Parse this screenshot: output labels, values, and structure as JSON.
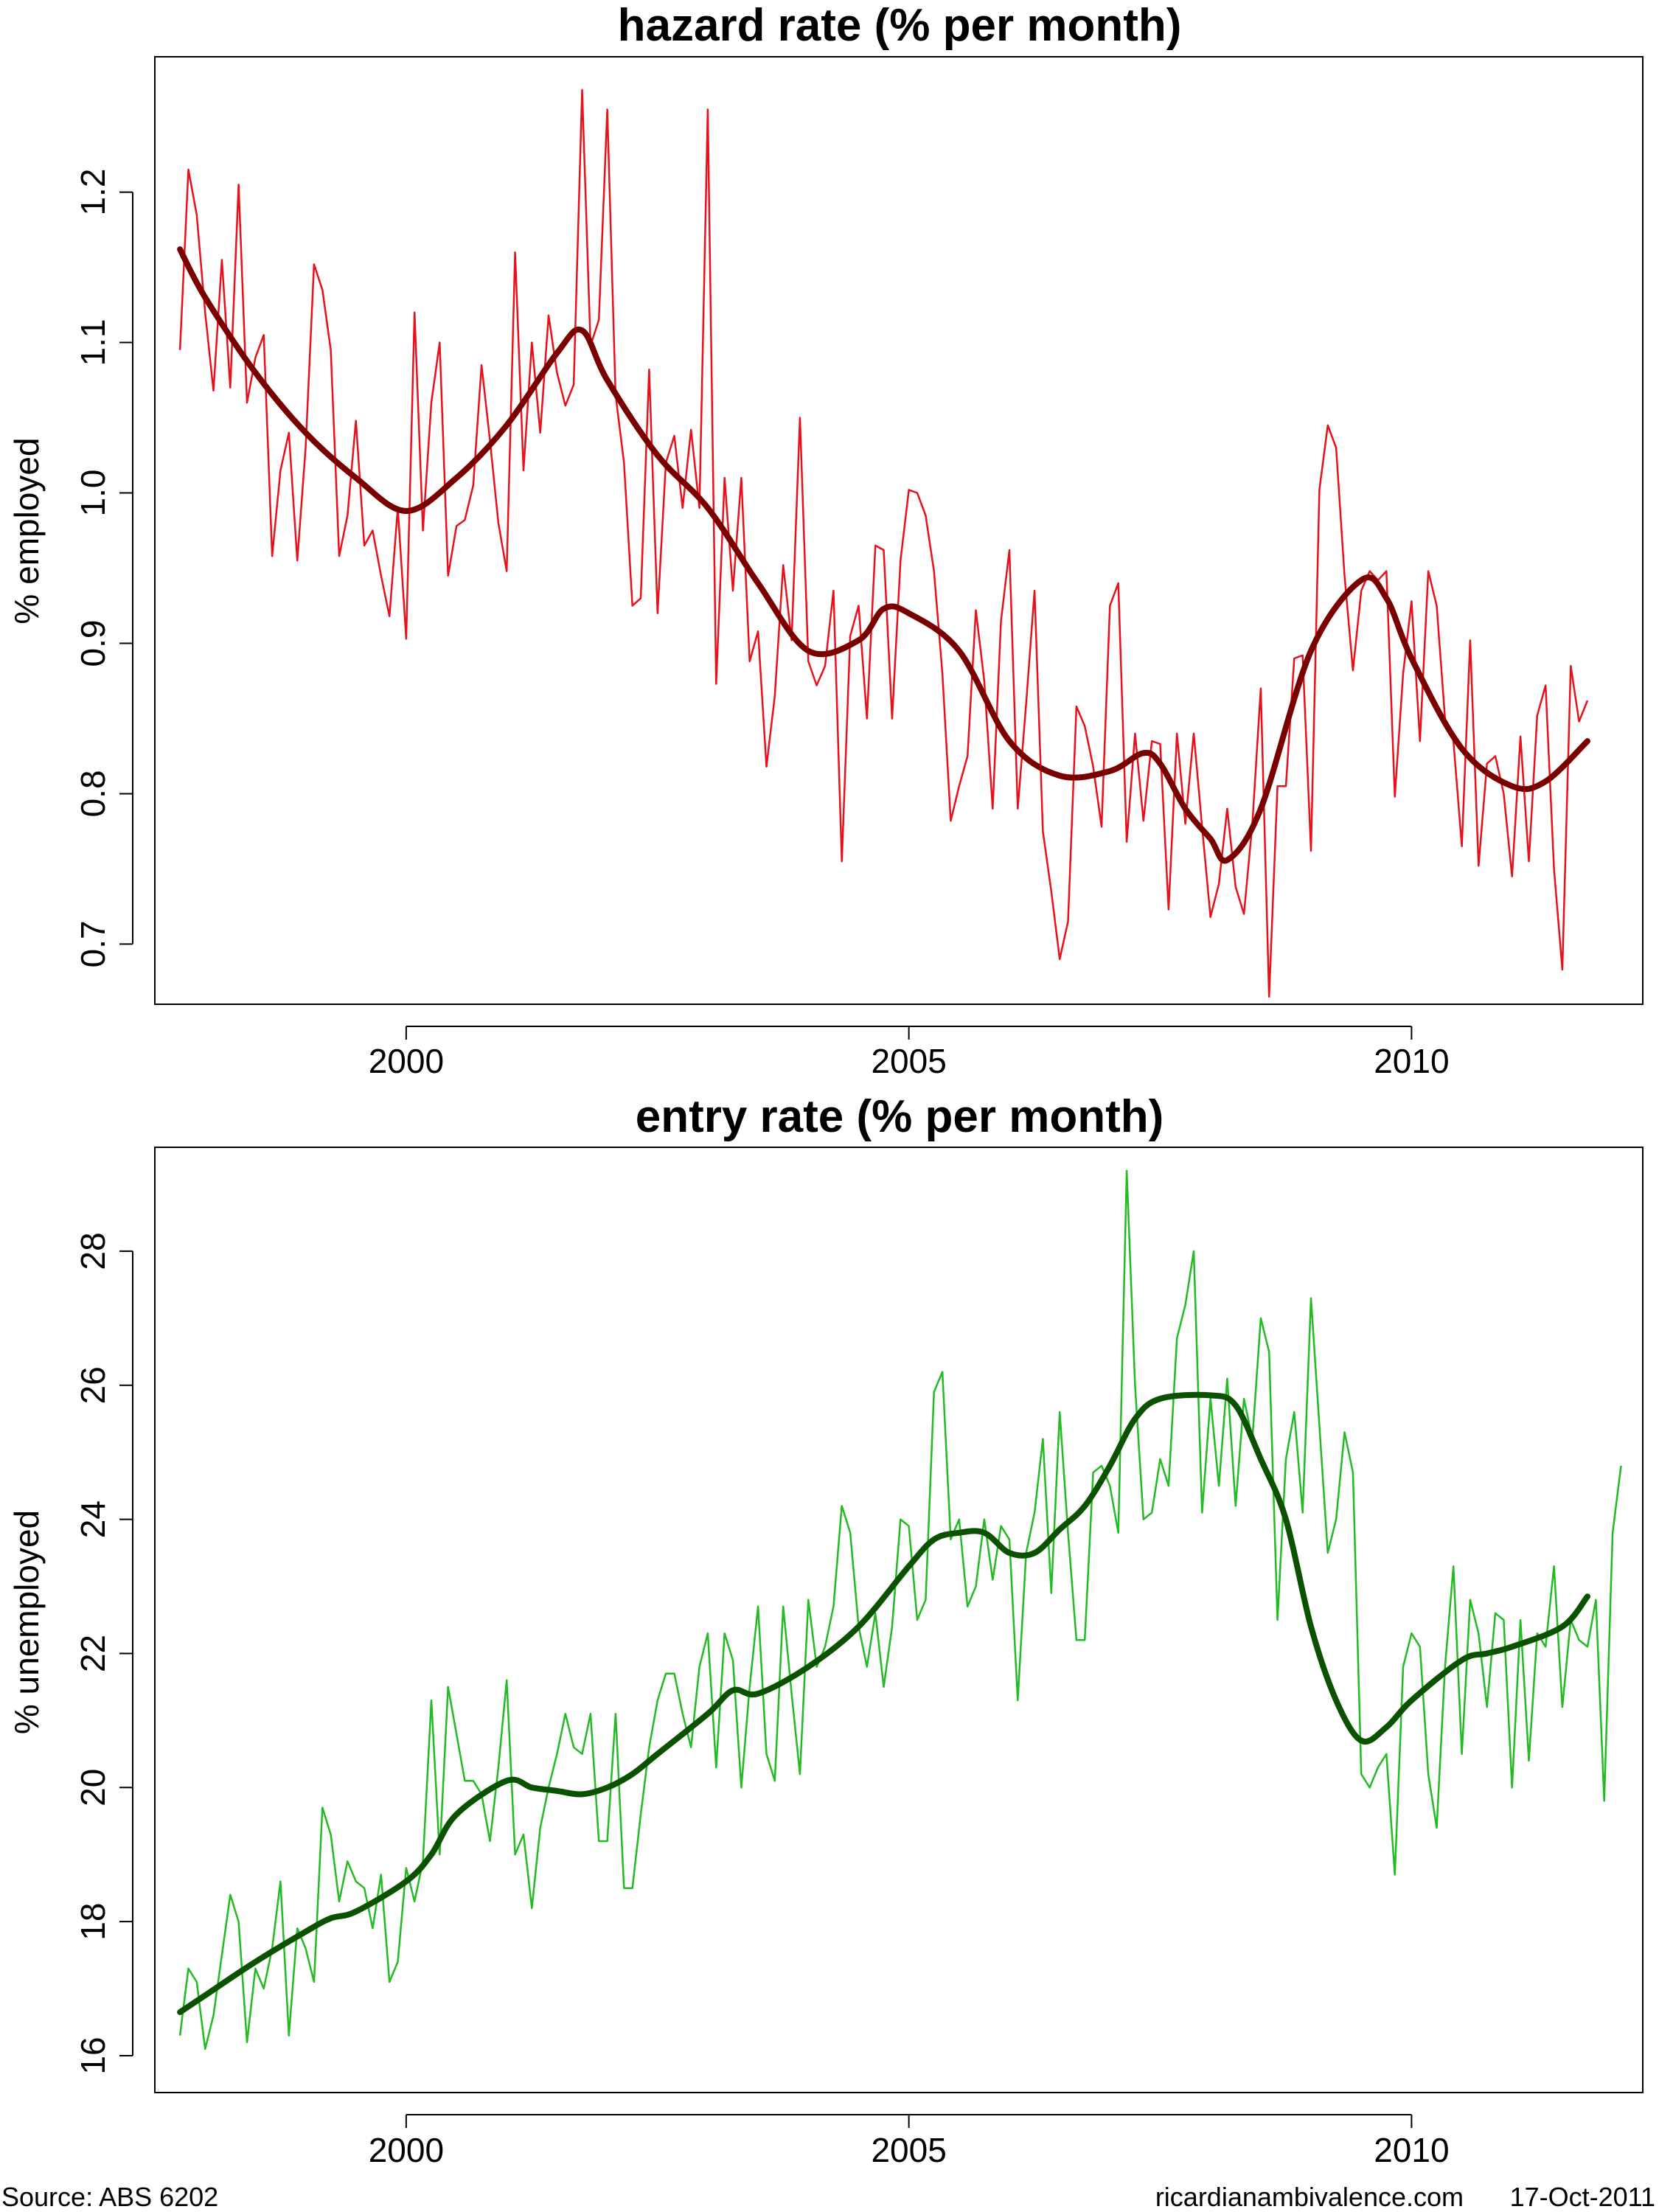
{
  "footer": {
    "source": "Source: ABS 6202",
    "site": "ricardianambivalence.com",
    "date": "17-Oct-2011"
  },
  "chart_data": [
    {
      "type": "line",
      "title": "hazard rate (% per month)",
      "xlabel": "",
      "ylabel": "% employed",
      "xlim": [
        1997.5,
        2012.3
      ],
      "ylim": [
        0.66,
        1.29
      ],
      "x_ticks": [
        2000,
        2005,
        2010
      ],
      "y_ticks": [
        0.7,
        0.8,
        0.9,
        1.0,
        1.1,
        1.2
      ],
      "y_tick_labels": [
        "0.7",
        "0.8",
        "0.9",
        "1.0",
        "1.1",
        "1.2"
      ],
      "colors": {
        "raw": "#e8101a",
        "smooth": "#7a0000"
      },
      "x_start": 1997.75,
      "x_step": 0.0833333,
      "raw": [
        1.095,
        1.215,
        1.185,
        1.12,
        1.068,
        1.155,
        1.07,
        1.205,
        1.06,
        1.09,
        1.105,
        0.958,
        1.015,
        1.04,
        0.955,
        1.03,
        1.152,
        1.135,
        1.095,
        0.958,
        0.985,
        1.048,
        0.965,
        0.975,
        0.945,
        0.918,
        0.99,
        0.903,
        1.12,
        0.975,
        1.06,
        1.1,
        0.945,
        0.978,
        0.982,
        1.005,
        1.085,
        1.035,
        0.98,
        0.948,
        1.16,
        1.015,
        1.1,
        1.04,
        1.118,
        1.08,
        1.058,
        1.072,
        1.268,
        1.098,
        1.115,
        1.255,
        1.065,
        1.02,
        0.925,
        0.93,
        1.082,
        0.92,
        1.02,
        1.038,
        0.99,
        1.042,
        0.99,
        1.255,
        0.873,
        1.01,
        0.935,
        1.01,
        0.888,
        0.908,
        0.818,
        0.865,
        0.952,
        0.902,
        1.05,
        0.888,
        0.872,
        0.885,
        0.935,
        0.755,
        0.905,
        0.925,
        0.85,
        0.965,
        0.962,
        0.85,
        0.955,
        1.002,
        1.0,
        0.985,
        0.948,
        0.88,
        0.782,
        0.805,
        0.825,
        0.922,
        0.875,
        0.79,
        0.915,
        0.962,
        0.79,
        0.86,
        0.935,
        0.775,
        0.735,
        0.69,
        0.715,
        0.858,
        0.845,
        0.818,
        0.778,
        0.925,
        0.94,
        0.768,
        0.84,
        0.782,
        0.835,
        0.833,
        0.723,
        0.84,
        0.78,
        0.84,
        0.778,
        0.718,
        0.74,
        0.79,
        0.738,
        0.72,
        0.78,
        0.87,
        0.665,
        0.805,
        0.805,
        0.89,
        0.892,
        0.762,
        1.002,
        1.045,
        1.03,
        0.945,
        0.882,
        0.935,
        0.948,
        0.942,
        0.948,
        0.798,
        0.88,
        0.928,
        0.835,
        0.948,
        0.925,
        0.85,
        0.835,
        0.765,
        0.902,
        0.752,
        0.82,
        0.825,
        0.8,
        0.745,
        0.838,
        0.755,
        0.852,
        0.872,
        0.75,
        0.683,
        0.885,
        0.848,
        0.862
      ],
      "smooth": [
        [
          1997.75,
          1.162
        ],
        [
          1998.0,
          1.13
        ],
        [
          1998.5,
          1.08
        ],
        [
          1999.0,
          1.04
        ],
        [
          1999.5,
          1.01
        ],
        [
          2000.0,
          0.988
        ],
        [
          2000.5,
          1.01
        ],
        [
          2001.0,
          1.045
        ],
        [
          2001.5,
          1.093
        ],
        [
          2001.75,
          1.108
        ],
        [
          2002.0,
          1.075
        ],
        [
          2002.5,
          1.025
        ],
        [
          2003.0,
          0.99
        ],
        [
          2003.5,
          0.94
        ],
        [
          2004.0,
          0.895
        ],
        [
          2004.5,
          0.902
        ],
        [
          2004.75,
          0.923
        ],
        [
          2005.0,
          0.92
        ],
        [
          2005.5,
          0.895
        ],
        [
          2006.0,
          0.835
        ],
        [
          2006.5,
          0.812
        ],
        [
          2007.0,
          0.815
        ],
        [
          2007.33,
          0.827
        ],
        [
          2007.5,
          0.82
        ],
        [
          2007.75,
          0.79
        ],
        [
          2008.0,
          0.77
        ],
        [
          2008.17,
          0.756
        ],
        [
          2008.5,
          0.79
        ],
        [
          2009.0,
          0.895
        ],
        [
          2009.5,
          0.942
        ],
        [
          2009.75,
          0.93
        ],
        [
          2010.0,
          0.89
        ],
        [
          2010.5,
          0.83
        ],
        [
          2011.0,
          0.805
        ],
        [
          2011.33,
          0.808
        ],
        [
          2011.75,
          0.835
        ]
      ]
    },
    {
      "type": "line",
      "title": "entry rate (% per month)",
      "xlabel": "",
      "ylabel": "% unemployed",
      "xlim": [
        1997.5,
        2012.3
      ],
      "ylim": [
        15.45,
        29.55
      ],
      "x_ticks": [
        2000,
        2005,
        2010
      ],
      "y_ticks": [
        16,
        18,
        20,
        22,
        24,
        26,
        28
      ],
      "y_tick_labels": [
        "16",
        "18",
        "20",
        "22",
        "24",
        "26",
        "28"
      ],
      "colors": {
        "raw": "#22bb22",
        "smooth": "#0a5200"
      },
      "x_start": 1997.75,
      "x_step": 0.0833333,
      "raw": [
        16.3,
        17.3,
        17.1,
        16.1,
        16.6,
        17.5,
        18.4,
        18.0,
        16.2,
        17.3,
        17.0,
        17.6,
        18.6,
        16.3,
        17.9,
        17.6,
        17.1,
        19.7,
        19.3,
        18.3,
        18.9,
        18.6,
        18.5,
        17.9,
        18.7,
        17.1,
        17.4,
        18.8,
        18.3,
        18.9,
        21.3,
        19.0,
        21.5,
        20.8,
        20.1,
        20.1,
        19.9,
        19.2,
        20.3,
        21.6,
        19.0,
        19.3,
        18.2,
        19.4,
        20.0,
        20.5,
        21.1,
        20.6,
        20.5,
        21.1,
        19.2,
        19.2,
        21.1,
        18.5,
        18.5,
        19.6,
        20.6,
        21.3,
        21.7,
        21.7,
        21.1,
        20.6,
        21.8,
        22.3,
        20.3,
        22.3,
        21.9,
        20.0,
        21.5,
        22.7,
        20.5,
        20.1,
        22.7,
        21.4,
        20.2,
        22.8,
        21.8,
        22.1,
        22.7,
        24.2,
        23.8,
        22.4,
        21.8,
        22.6,
        21.5,
        22.4,
        24.0,
        23.9,
        22.5,
        22.8,
        25.9,
        26.2,
        23.7,
        24.0,
        22.7,
        23.0,
        24.0,
        23.1,
        23.9,
        23.7,
        21.3,
        23.5,
        24.1,
        25.2,
        22.9,
        25.6,
        23.8,
        22.2,
        22.2,
        24.7,
        24.8,
        24.5,
        23.8,
        29.2,
        26.0,
        24.0,
        24.1,
        24.9,
        24.5,
        26.7,
        27.2,
        28.0,
        24.1,
        25.8,
        24.5,
        26.1,
        24.2,
        25.8,
        25.2,
        27.0,
        26.5,
        22.5,
        24.9,
        25.6,
        24.1,
        27.3,
        25.4,
        23.5,
        24.0,
        25.3,
        24.7,
        20.2,
        20.0,
        20.3,
        20.5,
        18.7,
        21.8,
        22.3,
        22.1,
        20.2,
        19.4,
        21.8,
        23.3,
        20.5,
        22.8,
        22.3,
        21.2,
        22.6,
        22.5,
        20.0,
        22.5,
        20.4,
        22.3,
        22.1,
        23.3,
        21.2,
        22.5,
        22.2,
        22.1,
        22.8,
        19.8,
        23.8,
        24.8
      ],
      "smooth": [
        [
          1997.75,
          16.65
        ],
        [
          1998.0,
          16.9
        ],
        [
          1998.5,
          17.4
        ],
        [
          1999.0,
          17.85
        ],
        [
          1999.25,
          18.05
        ],
        [
          1999.5,
          18.15
        ],
        [
          2000.0,
          18.6
        ],
        [
          2000.25,
          19.0
        ],
        [
          2000.5,
          19.6
        ],
        [
          2001.0,
          20.1
        ],
        [
          2001.25,
          20.0
        ],
        [
          2001.5,
          19.95
        ],
        [
          2001.75,
          19.9
        ],
        [
          2002.0,
          20.0
        ],
        [
          2002.25,
          20.2
        ],
        [
          2002.5,
          20.5
        ],
        [
          2003.0,
          21.1
        ],
        [
          2003.25,
          21.45
        ],
        [
          2003.5,
          21.4
        ],
        [
          2004.0,
          21.8
        ],
        [
          2004.5,
          22.4
        ],
        [
          2005.0,
          23.3
        ],
        [
          2005.25,
          23.7
        ],
        [
          2005.5,
          23.8
        ],
        [
          2005.75,
          23.8
        ],
        [
          2006.0,
          23.5
        ],
        [
          2006.25,
          23.5
        ],
        [
          2006.5,
          23.85
        ],
        [
          2006.75,
          24.2
        ],
        [
          2007.0,
          24.8
        ],
        [
          2007.25,
          25.5
        ],
        [
          2007.5,
          25.8
        ],
        [
          2008.0,
          25.85
        ],
        [
          2008.25,
          25.7
        ],
        [
          2008.5,
          24.9
        ],
        [
          2008.75,
          24.0
        ],
        [
          2009.0,
          22.4
        ],
        [
          2009.25,
          21.3
        ],
        [
          2009.5,
          20.7
        ],
        [
          2009.75,
          20.9
        ],
        [
          2010.0,
          21.3
        ],
        [
          2010.5,
          21.9
        ],
        [
          2010.75,
          22.0
        ],
        [
          2011.0,
          22.1
        ],
        [
          2011.5,
          22.4
        ],
        [
          2011.75,
          22.85
        ]
      ]
    }
  ]
}
